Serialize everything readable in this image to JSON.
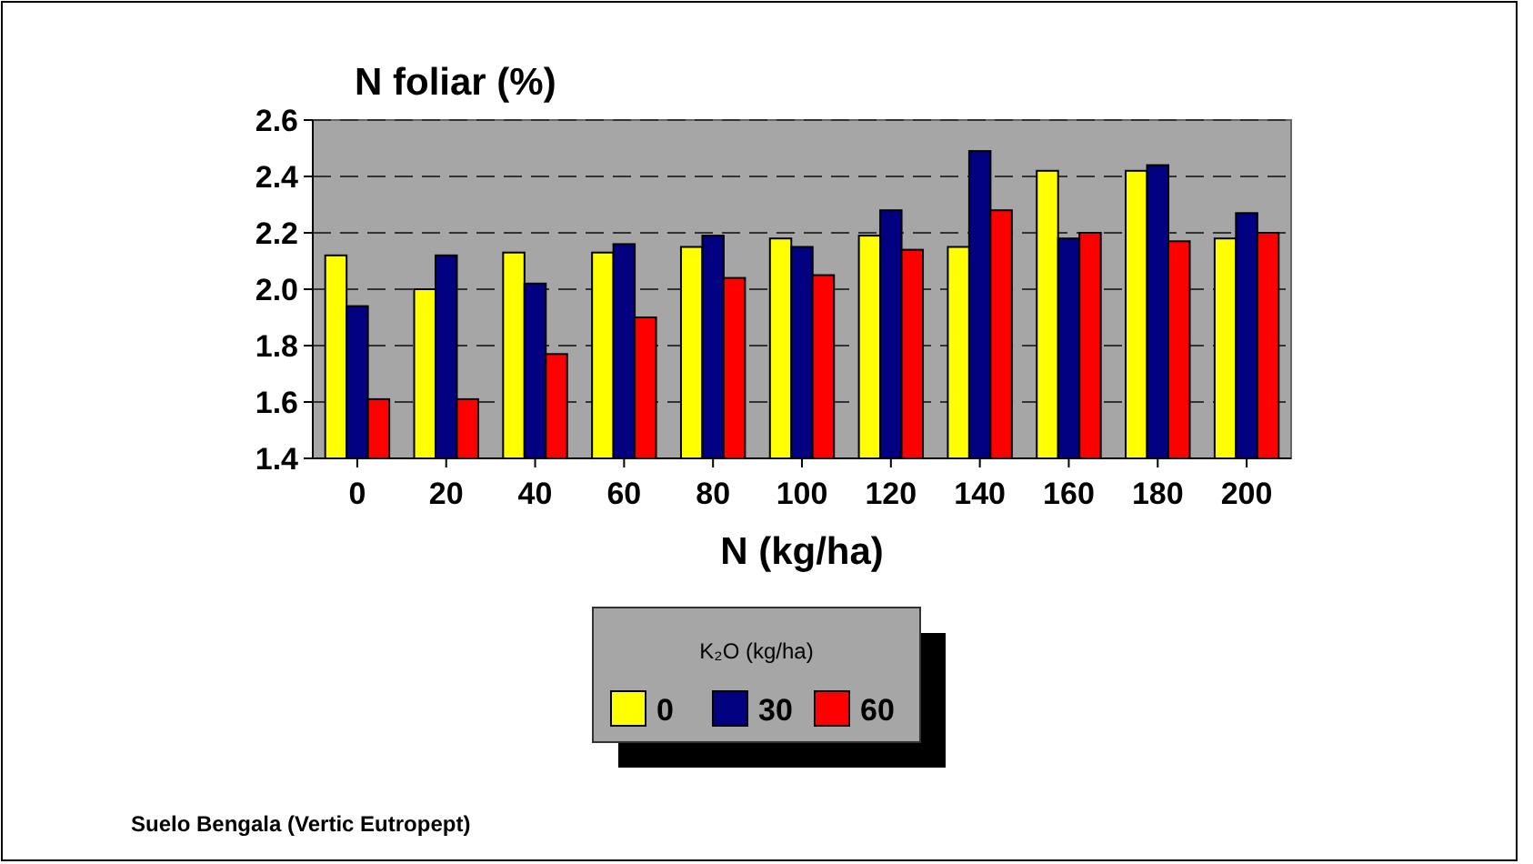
{
  "chart_data": {
    "type": "bar",
    "title": "N foliar (%)",
    "xlabel": "N (kg/ha)",
    "legend_title": "K₂O (kg/ha)",
    "categories": [
      "0",
      "20",
      "40",
      "60",
      "80",
      "100",
      "120",
      "140",
      "160",
      "180",
      "200"
    ],
    "series": [
      {
        "name": "0",
        "color": "#ffff00",
        "values": [
          2.12,
          2.0,
          2.13,
          2.13,
          2.15,
          2.18,
          2.19,
          2.15,
          2.42,
          2.42,
          2.18
        ]
      },
      {
        "name": "30",
        "color": "#000080",
        "values": [
          1.94,
          2.12,
          2.02,
          2.16,
          2.19,
          2.15,
          2.28,
          2.49,
          2.18,
          2.44,
          2.27
        ]
      },
      {
        "name": "60",
        "color": "#ff0000",
        "values": [
          1.61,
          1.61,
          1.77,
          1.9,
          2.04,
          2.05,
          2.14,
          2.28,
          2.2,
          2.17,
          2.2
        ]
      }
    ],
    "ylim": [
      1.4,
      2.6
    ],
    "yticks": [
      {
        "value": 1.4,
        "label": "1.4"
      },
      {
        "value": 1.6,
        "label": "1.6"
      },
      {
        "value": 1.8,
        "label": "1.8"
      },
      {
        "value": 2.0,
        "label": "2.0"
      },
      {
        "value": 2.2,
        "label": "2.2"
      },
      {
        "value": 2.4,
        "label": "2.4"
      },
      {
        "value": 2.6,
        "label": "2.6"
      }
    ],
    "grid": "y",
    "legend": "bottom",
    "annotations": [
      "Suelo Bengala (Vertic Eutropept)"
    ]
  }
}
